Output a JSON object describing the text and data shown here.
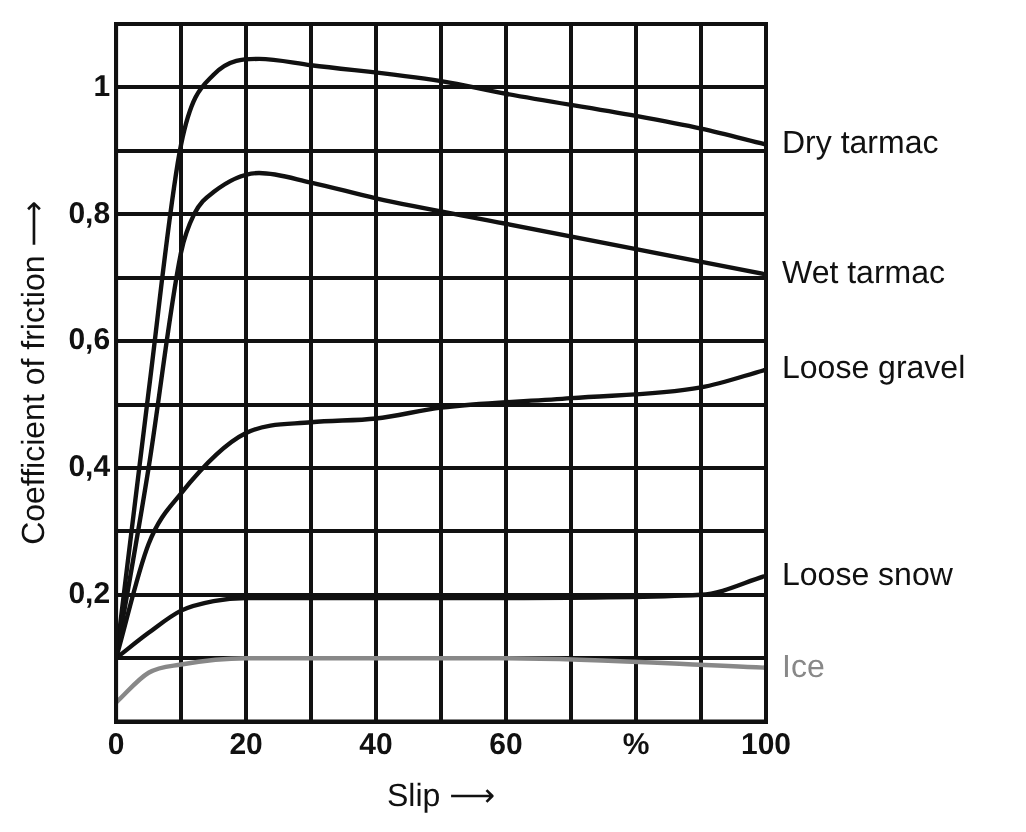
{
  "chart_data": {
    "type": "line",
    "xlabel": "Slip ⟶",
    "ylabel": "Coefficient of friction ⟶",
    "xlim": [
      0,
      100
    ],
    "ylim": [
      0,
      1.1
    ],
    "xticks": [
      0,
      {
        "value": 10,
        "label": null
      },
      20,
      {
        "value": 30,
        "label": null
      },
      40,
      {
        "value": 50,
        "label": null
      },
      60,
      {
        "value": 70,
        "label": null
      },
      {
        "value": 80,
        "label": "%"
      },
      {
        "value": 90,
        "label": null
      },
      100
    ],
    "yticks": [
      {
        "value": 0,
        "label": null
      },
      {
        "value": 0.1,
        "label": null
      },
      {
        "value": 0.2,
        "label": "0,2"
      },
      {
        "value": 0.3,
        "label": null
      },
      {
        "value": 0.4,
        "label": "0,4"
      },
      {
        "value": 0.5,
        "label": null
      },
      {
        "value": 0.6,
        "label": "0,6"
      },
      {
        "value": 0.7,
        "label": null
      },
      {
        "value": 0.8,
        "label": "0,8"
      },
      {
        "value": 0.9,
        "label": null
      },
      1
    ],
    "grid": true,
    "legend": false,
    "marker": "none",
    "line_style": "solid",
    "series": [
      {
        "name": "Dry tarmac",
        "color": "#111111",
        "x": [
          0,
          5,
          10,
          15,
          22,
          30,
          50,
          60,
          80,
          90,
          100
        ],
        "values": [
          0.1,
          0.52,
          0.91,
          1.02,
          1.045,
          1.035,
          1.01,
          0.99,
          0.955,
          0.935,
          0.91
        ]
      },
      {
        "name": "Wet tarmac",
        "color": "#111111",
        "x": [
          0,
          5,
          10,
          12,
          15,
          22,
          30,
          40,
          60,
          80,
          100
        ],
        "values": [
          0.1,
          0.4,
          0.74,
          0.8,
          0.835,
          0.865,
          0.85,
          0.825,
          0.785,
          0.745,
          0.705
        ]
      },
      {
        "name": "Loose gravel",
        "color": "#111111",
        "x": [
          0,
          5,
          10,
          20,
          30,
          40,
          50,
          70,
          90,
          100
        ],
        "values": [
          0.1,
          0.28,
          0.36,
          0.455,
          0.472,
          0.478,
          0.495,
          0.51,
          0.527,
          0.555
        ]
      },
      {
        "name": "Loose snow",
        "color": "#111111",
        "x": [
          0,
          5,
          10,
          15,
          20,
          60,
          90,
          100
        ],
        "values": [
          0.1,
          0.14,
          0.175,
          0.19,
          0.195,
          0.195,
          0.2,
          0.23
        ]
      },
      {
        "name": "Ice",
        "color": "#888888",
        "x": [
          0,
          5,
          10,
          20,
          40,
          60,
          100
        ],
        "values": [
          0.03,
          0.077,
          0.09,
          0.1,
          0.1,
          0.1,
          0.085
        ]
      }
    ]
  }
}
